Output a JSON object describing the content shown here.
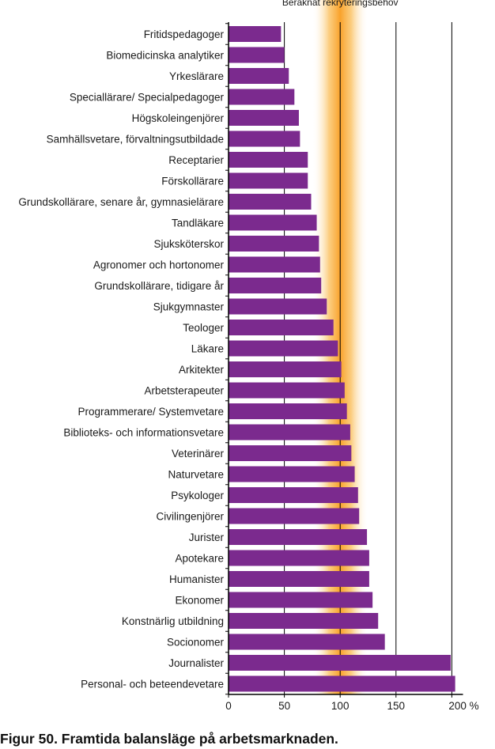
{
  "caption": "Figur 50. Framtida balansläge på arbetsmarknaden.",
  "chart_data": {
    "type": "bar",
    "orientation": "horizontal",
    "title": "",
    "band_label": "Beräknat rekryteringsbehov",
    "band_range": [
      75,
      125
    ],
    "xlabel": "",
    "ylabel": "",
    "xlim": [
      0,
      210
    ],
    "x_ticks": [
      {
        "value": 0,
        "label": "0"
      },
      {
        "value": 50,
        "label": "50"
      },
      {
        "value": 100,
        "label": "100"
      },
      {
        "value": 150,
        "label": "150"
      },
      {
        "value": 200,
        "label": "200 %"
      }
    ],
    "vertical_lines": [
      50,
      100,
      150,
      200
    ],
    "grid": false,
    "bar_color": "#7b2a8e",
    "band_color": "#f9a22b",
    "categories": [
      "Fritidspedagoger",
      "Biomedicinska analytiker",
      "Yrkeslärare",
      "Speciallärare/ Specialpedagoger",
      "Högskoleingenjörer",
      "Samhällsvetare, förvaltningsutbildade",
      "Receptarier",
      "Förskollärare",
      "Grundskollärare, senare år, gymnasielärare",
      "Tandläkare",
      "Sjuksköterskor",
      "Agronomer och hortonomer",
      "Grundskollärare, tidigare år",
      "Sjukgymnaster",
      "Teologer",
      "Läkare",
      "Arkitekter",
      "Arbetsterapeuter",
      "Programmerare/ Systemvetare",
      "Biblioteks- och informationsvetare",
      "Veterinärer",
      "Naturvetare",
      "Psykologer",
      "Civilingenjörer",
      "Jurister",
      "Apotekare",
      "Humanister",
      "Ekonomer",
      "Konstnärlig utbildning",
      "Socionomer",
      "Journalister",
      "Personal- och beteendevetare"
    ],
    "values": [
      47,
      50,
      54,
      59,
      63,
      64,
      71,
      71,
      74,
      79,
      81,
      82,
      83,
      88,
      94,
      98,
      101,
      104,
      106,
      109,
      110,
      113,
      116,
      117,
      124,
      126,
      126,
      129,
      134,
      140,
      199,
      203
    ]
  }
}
